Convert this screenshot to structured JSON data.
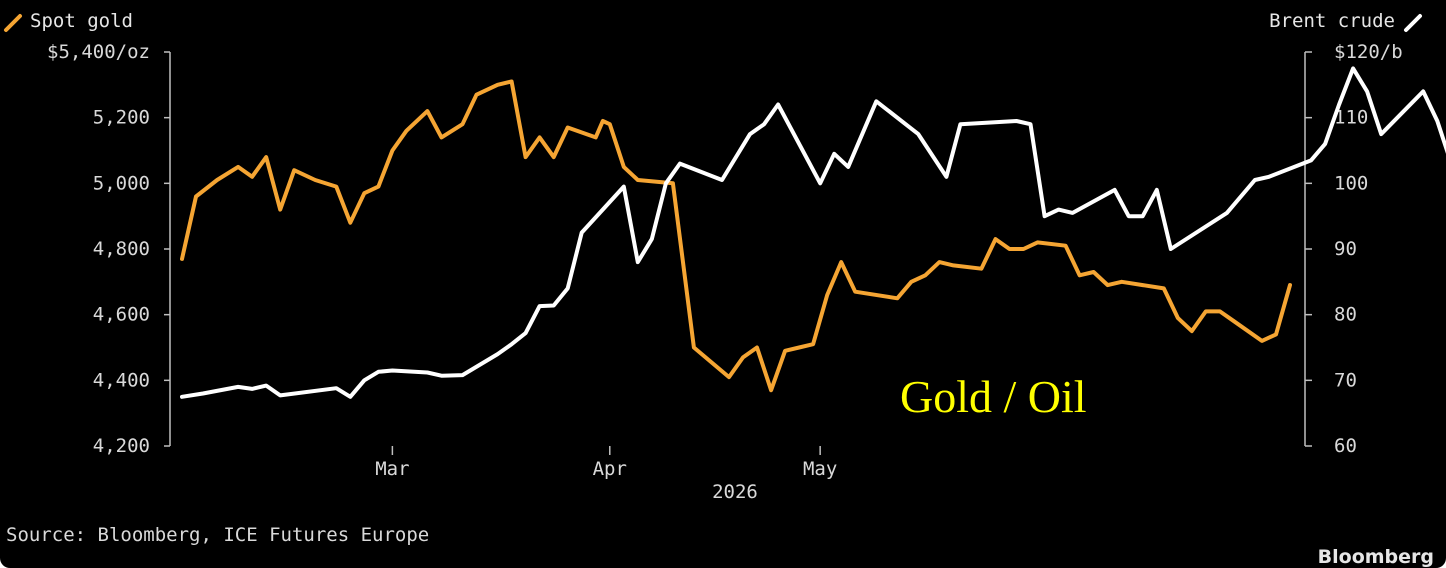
{
  "chart_data": {
    "type": "line",
    "title": "",
    "year_label": "2026",
    "source": "Source: Bloomberg, ICE Futures Europe",
    "brand": "Bloomberg",
    "overlay_text": "Gold / Oil",
    "grid": false,
    "legend": [
      {
        "name": "Spot gold",
        "position": "top-left"
      },
      {
        "name": "Brent crude",
        "position": "top-right"
      }
    ],
    "x_ticks": [
      {
        "label": "Mar",
        "date": "2026-03-01"
      },
      {
        "label": "Apr",
        "date": "2026-04-01"
      },
      {
        "label": "May",
        "date": "2026-05-01"
      }
    ],
    "left_axis": {
      "ylim": [
        4200,
        5400
      ],
      "ticks": [
        {
          "value": 5400,
          "label": "$5,400/oz"
        },
        {
          "value": 5200,
          "label": "5,200"
        },
        {
          "value": 5000,
          "label": "5,000"
        },
        {
          "value": 4800,
          "label": "4,800"
        },
        {
          "value": 4600,
          "label": "4,600"
        },
        {
          "value": 4400,
          "label": "4,400"
        },
        {
          "value": 4200,
          "label": "4,200"
        }
      ]
    },
    "right_axis": {
      "ylim": [
        60,
        120
      ],
      "ticks": [
        {
          "value": 120,
          "label": "$120/b"
        },
        {
          "value": 110,
          "label": "110"
        },
        {
          "value": 100,
          "label": "100"
        },
        {
          "value": 90,
          "label": "90"
        },
        {
          "value": 80,
          "label": "80"
        },
        {
          "value": 70,
          "label": "70"
        },
        {
          "value": 60,
          "label": "60"
        }
      ]
    },
    "series": [
      {
        "name": "Spot gold",
        "axis": "left",
        "color": "#f5a533",
        "points": [
          [
            "2026-01-30",
            4770
          ],
          [
            "2026-02-01",
            4960
          ],
          [
            "2026-02-04",
            5010
          ],
          [
            "2026-02-07",
            5050
          ],
          [
            "2026-02-09",
            5020
          ],
          [
            "2026-02-11",
            5080
          ],
          [
            "2026-02-13",
            4920
          ],
          [
            "2026-02-15",
            5040
          ],
          [
            "2026-02-18",
            5010
          ],
          [
            "2026-02-21",
            4990
          ],
          [
            "2026-02-23",
            4880
          ],
          [
            "2026-02-25",
            4970
          ],
          [
            "2026-02-27",
            4990
          ],
          [
            "2026-02-29",
            5100
          ],
          [
            "2026-03-03",
            5160
          ],
          [
            "2026-03-06",
            5220
          ],
          [
            "2026-03-08",
            5140
          ],
          [
            "2026-03-11",
            5180
          ],
          [
            "2026-03-13",
            5270
          ],
          [
            "2026-03-16",
            5300
          ],
          [
            "2026-03-18",
            5310
          ],
          [
            "2026-03-20",
            5080
          ],
          [
            "2026-03-22",
            5140
          ],
          [
            "2026-03-24",
            5080
          ],
          [
            "2026-03-26",
            5170
          ],
          [
            "2026-03-30",
            5140
          ],
          [
            "2026-03-31",
            5190
          ],
          [
            "2026-04-01",
            5180
          ],
          [
            "2026-04-03",
            5050
          ],
          [
            "2026-04-05",
            5010
          ],
          [
            "2026-04-10",
            5000
          ],
          [
            "2026-04-13",
            4500
          ],
          [
            "2026-04-18",
            4410
          ],
          [
            "2026-04-20",
            4470
          ],
          [
            "2026-04-22",
            4500
          ],
          [
            "2026-04-24",
            4370
          ],
          [
            "2026-04-26",
            4490
          ],
          [
            "2026-04-28",
            4500
          ],
          [
            "2026-04-30",
            4510
          ],
          [
            "2026-05-02",
            4660
          ],
          [
            "2026-05-04",
            4760
          ],
          [
            "2026-05-06",
            4670
          ],
          [
            "2026-05-12",
            4650
          ],
          [
            "2026-05-14",
            4700
          ],
          [
            "2026-05-16",
            4720
          ],
          [
            "2026-05-18",
            4760
          ],
          [
            "2026-05-20",
            4750
          ],
          [
            "2026-05-24",
            4740
          ],
          [
            "2026-05-26",
            4830
          ],
          [
            "2026-05-28",
            4800
          ],
          [
            "2026-05-30",
            4800
          ],
          [
            "2026-06-01",
            4820
          ],
          [
            "2026-06-05",
            4810
          ],
          [
            "2026-06-07",
            4720
          ],
          [
            "2026-06-09",
            4730
          ],
          [
            "2026-06-11",
            4690
          ],
          [
            "2026-06-13",
            4700
          ],
          [
            "2026-06-19",
            4680
          ],
          [
            "2026-06-21",
            4590
          ],
          [
            "2026-06-23",
            4550
          ],
          [
            "2026-06-25",
            4610
          ],
          [
            "2026-06-27",
            4610
          ],
          [
            "2026-06-29",
            4580
          ],
          [
            "2026-07-03",
            4520
          ],
          [
            "2026-07-05",
            4540
          ],
          [
            "2026-07-07",
            4690
          ]
        ]
      },
      {
        "name": "Brent crude",
        "axis": "right",
        "color": "#ffffff",
        "points": [
          [
            "2026-01-30",
            67.5
          ],
          [
            "2026-02-02",
            68
          ],
          [
            "2026-02-07",
            69
          ],
          [
            "2026-02-09",
            68.7
          ],
          [
            "2026-02-11",
            69.2
          ],
          [
            "2026-02-13",
            67.7
          ],
          [
            "2026-02-21",
            68.8
          ],
          [
            "2026-02-23",
            67.5
          ],
          [
            "2026-02-25",
            70
          ],
          [
            "2026-02-27",
            71.3
          ],
          [
            "2026-03-01",
            71.5
          ],
          [
            "2026-03-06",
            71.2
          ],
          [
            "2026-03-08",
            70.7
          ],
          [
            "2026-03-11",
            70.8
          ],
          [
            "2026-03-16",
            74
          ],
          [
            "2026-03-18",
            75.5
          ],
          [
            "2026-03-20",
            77.2
          ],
          [
            "2026-03-22",
            81.3
          ],
          [
            "2026-03-24",
            81.4
          ],
          [
            "2026-03-26",
            84
          ],
          [
            "2026-03-28",
            92.5
          ],
          [
            "2026-04-03",
            99.5
          ],
          [
            "2026-04-05",
            88
          ],
          [
            "2026-04-07",
            91.5
          ],
          [
            "2026-04-09",
            100
          ],
          [
            "2026-04-11",
            103
          ],
          [
            "2026-04-17",
            100.5
          ],
          [
            "2026-04-21",
            107.5
          ],
          [
            "2026-04-23",
            109
          ],
          [
            "2026-04-25",
            112
          ],
          [
            "2026-05-01",
            100
          ],
          [
            "2026-05-03",
            104.5
          ],
          [
            "2026-05-05",
            102.5
          ],
          [
            "2026-05-09",
            112.5
          ],
          [
            "2026-05-15",
            107.5
          ],
          [
            "2026-05-19",
            101
          ],
          [
            "2026-05-21",
            109
          ],
          [
            "2026-05-29",
            109.5
          ],
          [
            "2026-05-31",
            109
          ],
          [
            "2026-06-02",
            95
          ],
          [
            "2026-06-04",
            96
          ],
          [
            "2026-06-06",
            95.5
          ],
          [
            "2026-06-12",
            99
          ],
          [
            "2026-06-14",
            95
          ],
          [
            "2026-06-16",
            95
          ],
          [
            "2026-06-18",
            99
          ],
          [
            "2026-06-20",
            90
          ],
          [
            "2026-06-28",
            95.5
          ],
          [
            "2026-07-02",
            100.5
          ],
          [
            "2026-07-04",
            101
          ],
          [
            "2026-07-10",
            103.5
          ],
          [
            "2026-07-12",
            106
          ],
          [
            "2026-07-14",
            112
          ],
          [
            "2026-07-16",
            117.5
          ],
          [
            "2026-07-18",
            114
          ],
          [
            "2026-07-20",
            107.5
          ],
          [
            "2026-07-26",
            114
          ],
          [
            "2026-07-28",
            109.5
          ],
          [
            "2026-07-30",
            103
          ]
        ]
      }
    ]
  },
  "colors": {
    "background": "#000000",
    "gold": "#f5a533",
    "oil": "#ffffff",
    "overlay": "#ffff00",
    "text": "#d9d9d9"
  },
  "legend_icons": {
    "gold": "line-swatch-icon",
    "oil": "line-swatch-icon"
  }
}
